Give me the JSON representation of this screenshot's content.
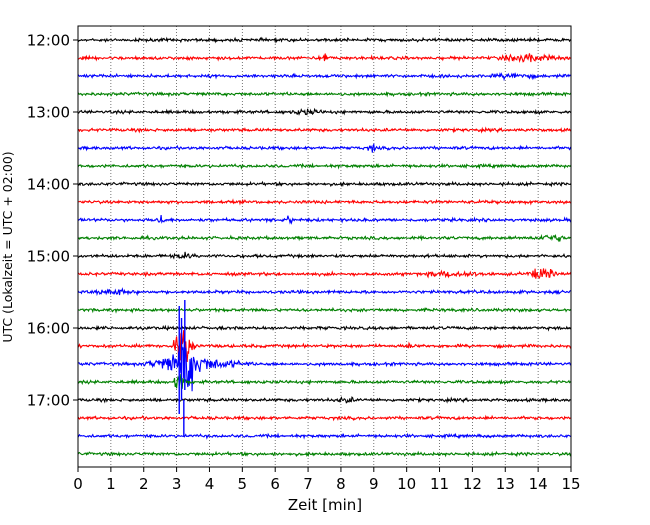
{
  "chart_data": {
    "type": "line",
    "subtype": "helicorder",
    "xlabel": "Zeit  [min]",
    "ylabel": "UTC (Lokalzeit = UTC + 02:00)",
    "xlim": [
      0,
      15
    ],
    "x_ticks": [
      0,
      1,
      2,
      3,
      4,
      5,
      6,
      7,
      8,
      9,
      10,
      11,
      12,
      13,
      14,
      15
    ],
    "x_tick_labels": [
      "0",
      "1",
      "2",
      "3",
      "4",
      "5",
      "6",
      "7",
      "8",
      "9",
      "10",
      "11",
      "12",
      "13",
      "14",
      "15"
    ],
    "y_tick_labels": [
      "12:00",
      "13:00",
      "14:00",
      "15:00",
      "16:00",
      "17:00"
    ],
    "trace_start_times": [
      "12:00",
      "12:15",
      "12:30",
      "12:45",
      "13:00",
      "13:15",
      "13:30",
      "13:45",
      "14:00",
      "14:15",
      "14:30",
      "14:45",
      "15:00",
      "15:15",
      "15:30",
      "15:45",
      "16:00",
      "16:15",
      "16:30",
      "16:45",
      "17:00",
      "17:15",
      "17:30",
      "17:45"
    ],
    "trace_colors": [
      "#000000",
      "#ff0000",
      "#0000ff",
      "#008000"
    ],
    "vertical_gridlines": "dotted",
    "legend": "none"
  }
}
